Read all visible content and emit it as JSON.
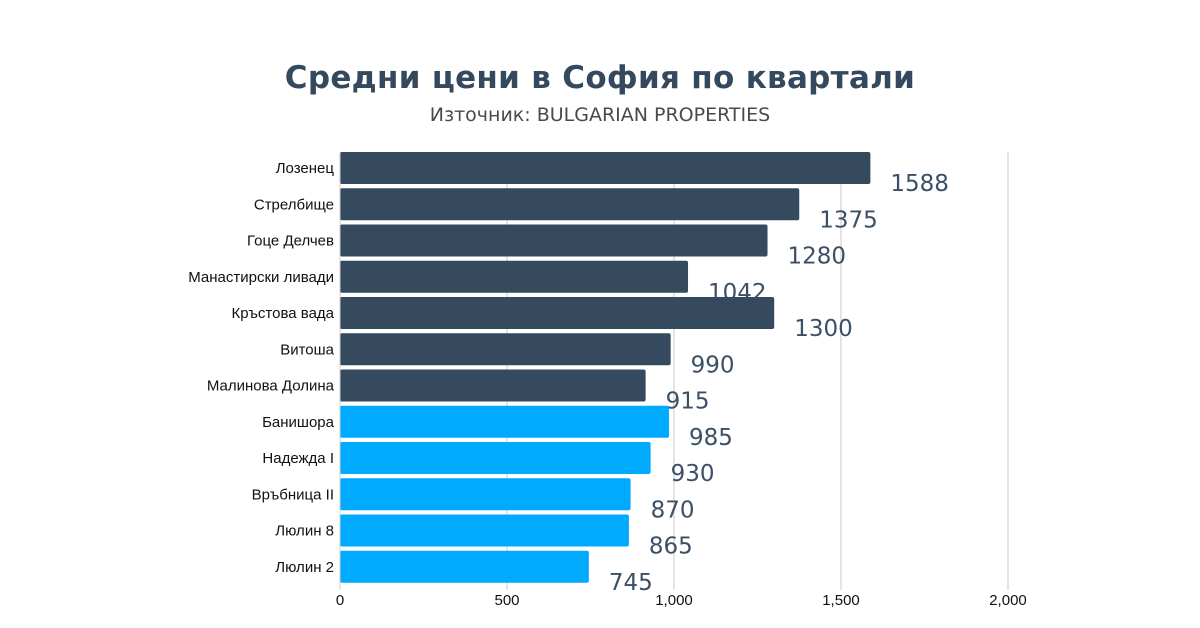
{
  "chart_data": {
    "type": "bar",
    "orientation": "horizontal",
    "title": "Средни цени в София по квартали",
    "subtitle": "Източник: BULGARIAN PROPERTIES",
    "categories": [
      "Лозенец",
      "Стрелбище",
      "Гоце Делчев",
      "Манастирски ливади",
      "Кръстова вада",
      "Витоша",
      "Малинова Долина",
      "Банишора",
      "Надежда I",
      "Връбница II",
      "Люлин 8",
      "Люлин 2"
    ],
    "values": [
      1588,
      1375,
      1280,
      1042,
      1300,
      990,
      915,
      985,
      930,
      870,
      865,
      745
    ],
    "bar_colors": [
      "#364a5f",
      "#364a5f",
      "#364a5f",
      "#364a5f",
      "#364a5f",
      "#364a5f",
      "#364a5f",
      "#00aaff",
      "#00aaff",
      "#00aaff",
      "#00aaff",
      "#00aaff"
    ],
    "xlim": [
      0,
      2000
    ],
    "xticks": [
      0,
      500,
      1000,
      1500,
      2000
    ],
    "xtick_labels": [
      "0",
      "500",
      "1,000",
      "1,500",
      "2,000"
    ],
    "grid": "vertical",
    "label_color": "#3d4f66"
  }
}
